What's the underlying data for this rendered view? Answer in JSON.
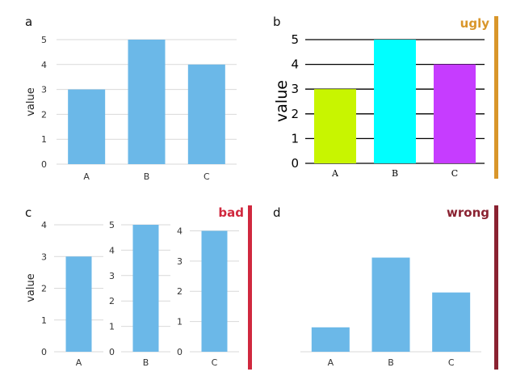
{
  "chart_data": [
    {
      "panel": "a",
      "type": "bar",
      "tag": "",
      "categories": [
        "A",
        "B",
        "C"
      ],
      "values": [
        3,
        5,
        4
      ],
      "ylabel": "value",
      "xlabel": "",
      "ylim": [
        0,
        5
      ],
      "yticks": [
        0,
        1,
        2,
        3,
        4,
        5
      ],
      "grid": true,
      "bar_color": "#6bb8e8"
    },
    {
      "panel": "b",
      "type": "bar",
      "tag": "ugly",
      "tag_color": "#d9962a",
      "categories": [
        "A",
        "B",
        "C"
      ],
      "values": [
        3,
        5,
        4
      ],
      "ylabel": "value",
      "xlabel": "",
      "ylim": [
        0,
        5
      ],
      "yticks": [
        0,
        1,
        2,
        3,
        4,
        5
      ],
      "grid": true,
      "bar_colors": [
        "#c8f500",
        "#00ffff",
        "#c63cff"
      ]
    },
    {
      "panel": "c",
      "type": "bar",
      "tag": "bad",
      "tag_color": "#d0283e",
      "ylabel": "value",
      "xlabel": "",
      "bar_color": "#6bb8e8",
      "subplots": [
        {
          "category": "A",
          "value": 3,
          "ylim": [
            0,
            4
          ],
          "yticks": [
            0,
            1,
            2,
            3,
            4
          ]
        },
        {
          "category": "B",
          "value": 5,
          "ylim": [
            0,
            5
          ],
          "yticks": [
            0,
            1,
            2,
            3,
            4,
            5
          ]
        },
        {
          "category": "C",
          "value": 4,
          "ylim": [
            0,
            4.2
          ],
          "yticks": [
            0,
            1,
            2,
            3,
            4
          ]
        }
      ]
    },
    {
      "panel": "d",
      "type": "bar",
      "tag": "wrong",
      "tag_color": "#8a2231",
      "categories": [
        "A",
        "B",
        "C"
      ],
      "values": [
        3,
        5,
        4
      ],
      "ylabel": "",
      "xlabel": "",
      "y_axis_shown": false,
      "baseline": 2.3,
      "ylim": [
        2.3,
        5.5
      ],
      "bar_color": "#6bb8e8"
    }
  ]
}
